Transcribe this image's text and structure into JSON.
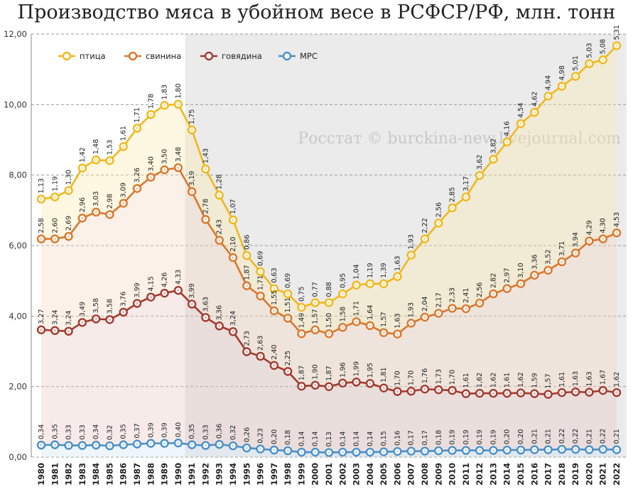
{
  "title": "Производство мяса в убойном весе в РСФСР/РФ, млн. тонн",
  "watermark": "Росстат © burckina-new.livejournal.com",
  "chart_data": {
    "type": "line",
    "x": [
      "1980",
      "1981",
      "1982",
      "1983",
      "1984",
      "1985",
      "1986",
      "1987",
      "1988",
      "1989",
      "1990",
      "1991",
      "1992",
      "1993",
      "1994",
      "1995",
      "1996",
      "1997",
      "1998",
      "1999",
      "2000",
      "2001",
      "2002",
      "2003",
      "2004",
      "2005",
      "2006",
      "2007",
      "2008",
      "2009",
      "2010",
      "2011",
      "2012",
      "2013",
      "2014",
      "2015",
      "2016",
      "2017",
      "2018",
      "2019",
      "2020",
      "2021",
      "2022"
    ],
    "ylim": [
      0,
      12
    ],
    "yticks": [
      "0,00",
      "2,00",
      "4,00",
      "6,00",
      "8,00",
      "10,00",
      "12,00"
    ],
    "stacked": true,
    "grid": true,
    "legend": "top-left",
    "shaded_from": "1991",
    "series": [
      {
        "name": "МРС",
        "color": "#4a90c8",
        "fill": "#cfe3f3",
        "values": [
          0.34,
          0.35,
          0.33,
          0.33,
          0.34,
          0.32,
          0.35,
          0.37,
          0.39,
          0.39,
          0.4,
          0.35,
          0.33,
          0.36,
          0.32,
          0.26,
          0.23,
          0.2,
          0.18,
          0.14,
          0.14,
          0.13,
          0.14,
          0.14,
          0.14,
          0.15,
          0.16,
          0.17,
          0.17,
          0.18,
          0.19,
          0.19,
          0.19,
          0.19,
          0.2,
          0.2,
          0.21,
          0.21,
          0.22,
          0.22,
          0.21,
          0.22,
          0.21
        ],
        "labels": [
          "0,34",
          "0,35",
          "0,33",
          "0,33",
          "0,34",
          "0,32",
          "0,35",
          "0,37",
          "0,39",
          "0,39",
          "0,40",
          "0,35",
          "0,33",
          "0,36",
          "0,32",
          "0,26",
          "0,23",
          "0,20",
          "0,18",
          "0,14",
          "0,14",
          "0,13",
          "0,14",
          "0,14",
          "0,14",
          "0,15",
          "0,16",
          "0,17",
          "0,17",
          "0,18",
          "0,19",
          "0,19",
          "0,19",
          "0,19",
          "0,20",
          "0,20",
          "0,21",
          "0,21",
          "0,22",
          "0,22",
          "0,21",
          "0,22",
          "0,21"
        ]
      },
      {
        "name": "говядина",
        "color": "#a23a2e",
        "fill": "#e8c6c0",
        "values": [
          3.27,
          3.24,
          3.24,
          3.49,
          3.58,
          3.58,
          3.76,
          3.99,
          4.15,
          4.26,
          4.33,
          3.99,
          3.63,
          3.36,
          3.24,
          2.73,
          2.63,
          2.4,
          2.25,
          1.87,
          1.9,
          1.87,
          1.96,
          1.99,
          1.95,
          1.81,
          1.7,
          1.7,
          1.76,
          1.73,
          1.7,
          1.61,
          1.62,
          1.62,
          1.61,
          1.62,
          1.59,
          1.57,
          1.61,
          1.63,
          1.63,
          1.67,
          1.62
        ],
        "labels": [
          "3,27",
          "3,24",
          "3,24",
          "3,49",
          "3,58",
          "3,58",
          "3,76",
          "3,99",
          "4,15",
          "4,26",
          "4,33",
          "3,99",
          "3,63",
          "3,36",
          "3,24",
          "2,73",
          "2,63",
          "2,40",
          "2,25",
          "1,87",
          "1,90",
          "1,87",
          "1,96",
          "1,99",
          "1,95",
          "1,81",
          "1,70",
          "1,70",
          "1,76",
          "1,73",
          "1,70",
          "1,61",
          "1,62",
          "1,62",
          "1,61",
          "1,62",
          "1,59",
          "1,57",
          "1,61",
          "1,63",
          "1,63",
          "1,67",
          "1,62"
        ]
      },
      {
        "name": "свинина",
        "color": "#d9772e",
        "fill": "#f5d7bd",
        "values": [
          2.58,
          2.6,
          2.69,
          2.96,
          3.03,
          2.98,
          3.09,
          3.26,
          3.4,
          3.5,
          3.48,
          3.19,
          2.78,
          2.43,
          2.1,
          1.87,
          1.71,
          1.55,
          1.51,
          1.49,
          1.57,
          1.5,
          1.58,
          1.71,
          1.64,
          1.57,
          1.63,
          1.93,
          2.04,
          2.17,
          2.33,
          2.41,
          2.56,
          2.82,
          2.97,
          3.1,
          3.36,
          3.52,
          3.71,
          3.94,
          4.29,
          4.3,
          4.53
        ],
        "labels": [
          "2,58",
          "2,60",
          "2,69",
          "2,96",
          "3,03",
          "2,98",
          "3,09",
          "3,26",
          "3,40",
          "3,50",
          "3,48",
          "3,19",
          "2,78",
          "2,43",
          "2,10",
          "1,87",
          "1,71",
          "1,55",
          "1,51",
          "1,49",
          "1,57",
          "1,50",
          "1,58",
          "1,71",
          "1,64",
          "1,57",
          "1,63",
          "1,93",
          "2,04",
          "2,17",
          "2,33",
          "2,41",
          "2,56",
          "2,82",
          "2,97",
          "3,10",
          "3,36",
          "3,52",
          "3,71",
          "3,94",
          "4,29",
          "4,30",
          "4,53"
        ]
      },
      {
        "name": "птица",
        "color": "#f0b81e",
        "fill": "#fbe7a8",
        "values": [
          1.13,
          1.19,
          1.3,
          1.42,
          1.48,
          1.53,
          1.61,
          1.71,
          1.78,
          1.83,
          1.8,
          1.75,
          1.43,
          1.28,
          1.07,
          0.86,
          0.69,
          0.63,
          0.69,
          0.75,
          0.77,
          0.88,
          0.95,
          1.04,
          1.19,
          1.39,
          1.63,
          1.93,
          2.22,
          2.56,
          2.85,
          3.17,
          3.62,
          3.82,
          4.16,
          4.54,
          4.62,
          4.94,
          4.98,
          5.01,
          5.03,
          5.08,
          5.31
        ],
        "labels": [
          "1,13",
          "1,19",
          "1,30",
          "1,42",
          "1,48",
          "1,53",
          "1,61",
          "1,71",
          "1,78",
          "1,83",
          "1,80",
          "1,75",
          "1,43",
          "1,28",
          "1,07",
          "0,86",
          "0,69",
          "0,63",
          "0,69",
          "0,75",
          "0,77",
          "0,88",
          "0,95",
          "1,04",
          "1,19",
          "1,39",
          "1,63",
          "1,93",
          "2,22",
          "2,56",
          "2,85",
          "3,17",
          "3,62",
          "3,82",
          "4,16",
          "4,54",
          "4,62",
          "4,94",
          "4,98",
          "5,01",
          "5,03",
          "5,08",
          "5,31"
        ]
      }
    ],
    "legend_order": [
      "птица",
      "свинина",
      "говядина",
      "МРС"
    ]
  }
}
